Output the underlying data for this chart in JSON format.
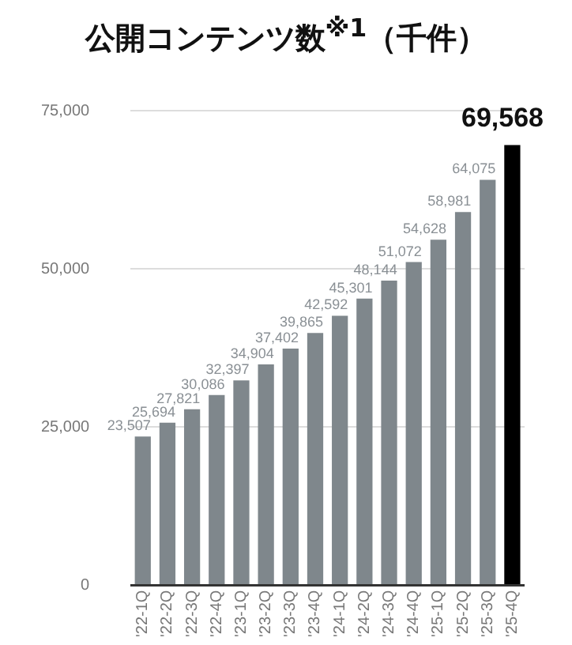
{
  "chart_data": {
    "type": "bar",
    "title": "公開コンテンツ数$^{※1}$（千件）",
    "categories": [
      "'22-1Q",
      "'22-2Q",
      "'22-3Q",
      "'22-4Q",
      "'23-1Q",
      "'23-2Q",
      "'23-3Q",
      "'23-4Q",
      "'24-1Q",
      "'24-2Q",
      "'24-3Q",
      "'24-4Q",
      "'25-1Q",
      "'25-2Q",
      "'25-3Q",
      "'25-4Q"
    ],
    "values": [
      23507,
      25694,
      27821,
      30086,
      32397,
      34904,
      37402,
      39865,
      42592,
      45301,
      48144,
      51072,
      54628,
      58981,
      64075,
      69568
    ],
    "colors": [
      "#7f878c",
      "#7f878c",
      "#7f878c",
      "#7f878c",
      "#7f878c",
      "#7f878c",
      "#7f878c",
      "#7f878c",
      "#7f878c",
      "#7f878c",
      "#7f878c",
      "#7f878c",
      "#7f878c",
      "#7f878c",
      "#7f878c",
      "#000000"
    ],
    "value_labels": [
      "23,507",
      "25,694",
      "27,821",
      "30,086",
      "32,397",
      "34,904",
      "37,402",
      "39,865",
      "42,592",
      "45,301",
      "48,144",
      "51,072",
      "54,628",
      "58,981",
      "64,075",
      "69,568"
    ],
    "ylim": [
      0,
      75000
    ],
    "yticks": [
      {
        "value": 0,
        "label": "0"
      },
      {
        "value": 25000,
        "label": "25,000"
      },
      {
        "value": 50000,
        "label": "50,000"
      },
      {
        "value": 75000,
        "label": "75,000"
      }
    ],
    "grid": "y",
    "legend": false
  }
}
